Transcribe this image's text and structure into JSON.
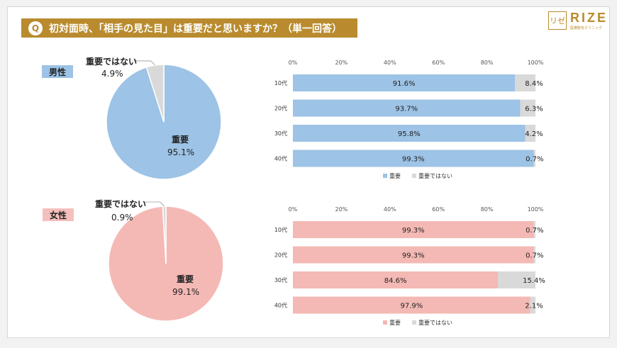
{
  "question": {
    "icon": "Q",
    "text": "初対面時、「相手の見た目」は重要だと思いますか？（単一回答）"
  },
  "brand": {
    "mark": "リゼ",
    "name": "RIZE",
    "tagline": "医療脱毛クリニック"
  },
  "colors": {
    "gold": "#b98b2e",
    "male_main": "#9dc3e6",
    "male_badge": "#9dc3e6",
    "female_main": "#f4b9b5",
    "female_badge": "#f5c0bc",
    "other": "#d9d9d9"
  },
  "chart_data": [
    {
      "type": "pie",
      "segment": "男性",
      "slices": [
        {
          "label": "重要",
          "value": 95.1,
          "display": "95.1%"
        },
        {
          "label": "重要ではない",
          "value": 4.9,
          "display": "4.9%"
        }
      ]
    },
    {
      "type": "bar",
      "orientation": "horizontal",
      "stacked": true,
      "segment": "男性",
      "categories": [
        "10代",
        "20代",
        "30代",
        "40代"
      ],
      "series": [
        {
          "name": "重要",
          "values": [
            91.6,
            93.7,
            95.8,
            99.3
          ],
          "labels": [
            "91.6%",
            "93.7%",
            "95.8%",
            "99.3%"
          ]
        },
        {
          "name": "重要ではない",
          "values": [
            8.4,
            6.3,
            4.2,
            0.7
          ],
          "labels": [
            "8.4%",
            "6.3%",
            "4.2%",
            "0.7%"
          ]
        }
      ],
      "xlim": [
        0,
        100
      ],
      "xticks": [
        "0%",
        "20%",
        "40%",
        "60%",
        "80%",
        "100%"
      ],
      "legend": "bottom"
    },
    {
      "type": "pie",
      "segment": "女性",
      "slices": [
        {
          "label": "重要",
          "value": 99.1,
          "display": "99.1%"
        },
        {
          "label": "重要ではない",
          "value": 0.9,
          "display": "0.9%"
        }
      ]
    },
    {
      "type": "bar",
      "orientation": "horizontal",
      "stacked": true,
      "segment": "女性",
      "categories": [
        "10代",
        "20代",
        "30代",
        "40代"
      ],
      "series": [
        {
          "name": "重要",
          "values": [
            99.3,
            99.3,
            84.6,
            97.9
          ],
          "labels": [
            "99.3%",
            "99.3%",
            "84.6%",
            "97.9%"
          ]
        },
        {
          "name": "重要ではない",
          "values": [
            0.7,
            0.7,
            15.4,
            2.1
          ],
          "labels": [
            "0.7%",
            "0.7%",
            "15.4%",
            "2.1%"
          ]
        }
      ],
      "xlim": [
        0,
        100
      ],
      "xticks": [
        "0%",
        "20%",
        "40%",
        "60%",
        "80%",
        "100%"
      ],
      "legend": "bottom"
    }
  ]
}
